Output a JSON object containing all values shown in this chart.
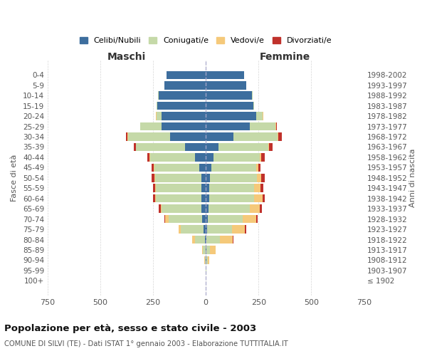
{
  "age_groups": [
    "100+",
    "95-99",
    "90-94",
    "85-89",
    "80-84",
    "75-79",
    "70-74",
    "65-69",
    "60-64",
    "55-59",
    "50-54",
    "45-49",
    "40-44",
    "35-39",
    "30-34",
    "25-29",
    "20-24",
    "15-19",
    "10-14",
    "5-9",
    "0-4"
  ],
  "birth_years": [
    "≤ 1902",
    "1903-1907",
    "1908-1912",
    "1913-1917",
    "1918-1922",
    "1923-1927",
    "1928-1932",
    "1933-1937",
    "1938-1942",
    "1943-1947",
    "1948-1952",
    "1953-1957",
    "1958-1962",
    "1963-1967",
    "1968-1972",
    "1973-1977",
    "1978-1982",
    "1983-1987",
    "1988-1992",
    "1993-1997",
    "1998-2002"
  ],
  "maschi": {
    "celibi": [
      0,
      0,
      1,
      2,
      5,
      10,
      18,
      20,
      22,
      22,
      22,
      30,
      50,
      100,
      170,
      210,
      210,
      230,
      225,
      195,
      185
    ],
    "coniugati": [
      0,
      1,
      4,
      12,
      45,
      110,
      160,
      190,
      215,
      215,
      220,
      215,
      215,
      230,
      200,
      100,
      25,
      5,
      3,
      0,
      0
    ],
    "vedovi": [
      0,
      0,
      2,
      5,
      15,
      10,
      15,
      5,
      5,
      3,
      3,
      2,
      2,
      2,
      2,
      2,
      2,
      0,
      0,
      0,
      0
    ],
    "divorziati": [
      0,
      0,
      0,
      0,
      0,
      0,
      3,
      8,
      10,
      12,
      12,
      10,
      10,
      10,
      8,
      0,
      0,
      0,
      0,
      0,
      0
    ]
  },
  "femmine": {
    "nubili": [
      0,
      0,
      1,
      2,
      3,
      5,
      10,
      12,
      15,
      15,
      18,
      25,
      35,
      60,
      130,
      210,
      240,
      225,
      220,
      190,
      180
    ],
    "coniugate": [
      0,
      2,
      8,
      18,
      65,
      120,
      165,
      195,
      215,
      215,
      225,
      215,
      220,
      235,
      210,
      120,
      30,
      5,
      2,
      0,
      0
    ],
    "vedove": [
      0,
      2,
      8,
      25,
      60,
      60,
      65,
      50,
      40,
      30,
      20,
      10,
      8,
      5,
      5,
      3,
      2,
      0,
      0,
      0,
      0
    ],
    "divorziate": [
      0,
      0,
      0,
      0,
      3,
      5,
      5,
      8,
      10,
      12,
      15,
      10,
      15,
      15,
      15,
      3,
      2,
      0,
      0,
      0,
      0
    ]
  },
  "colors": {
    "celibi_nubili": "#3d6e9e",
    "coniugati": "#c5d9a8",
    "vedovi": "#f5c97a",
    "divorziati": "#c0312b"
  },
  "xlim": 750,
  "title": "Popolazione per età, sesso e stato civile - 2003",
  "subtitle": "COMUNE DI SILVI (TE) - Dati ISTAT 1° gennaio 2003 - Elaborazione TUTTITALIA.IT",
  "xlabel_left": "Maschi",
  "xlabel_right": "Femmine",
  "ylabel_left": "Fasce di età",
  "ylabel_right": "Anni di nascita",
  "legend_labels": [
    "Celibi/Nubili",
    "Coniugati/e",
    "Vedovi/e",
    "Divorziati/e"
  ],
  "bg_color": "#ffffff",
  "grid_color": "#cccccc"
}
